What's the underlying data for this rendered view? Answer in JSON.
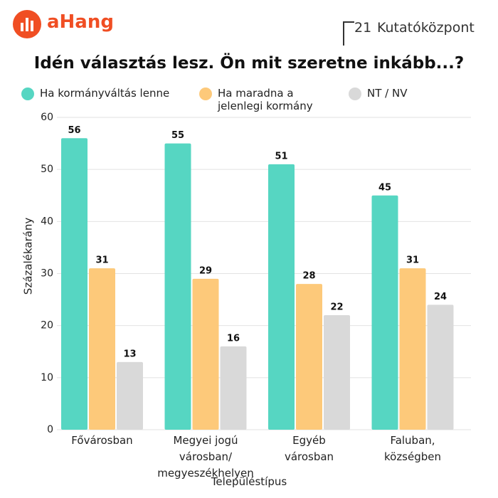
{
  "header": {
    "brand": "aHang",
    "partner_number": "21",
    "partner_name": "Kutatóközpont"
  },
  "chart_data": {
    "type": "bar",
    "title": "Idén választás lesz. Ön mit szeretne inkább...?",
    "x_label": "Településtípus",
    "y_label": "Százalékarány",
    "categories": [
      "Fővárosban",
      "Megyei jogú városban/\nmegyeszékhelyen",
      "Egyéb\nvárosban",
      "Faluban,\nközségben"
    ],
    "series": [
      {
        "name": "Ha kormányváltás lenne",
        "color": "#56d6c2",
        "values": [
          56,
          55,
          51,
          45
        ]
      },
      {
        "name": "Ha maradna a jelenlegi kormány",
        "color": "#fdc97a",
        "values": [
          31,
          29,
          28,
          31
        ]
      },
      {
        "name": "NT / NV",
        "color": "#d9d9d9",
        "values": [
          13,
          16,
          22,
          24
        ]
      }
    ],
    "ylim": [
      0,
      60
    ],
    "yticks": [
      0,
      10,
      20,
      30,
      40,
      50,
      60
    ],
    "grid": true
  }
}
